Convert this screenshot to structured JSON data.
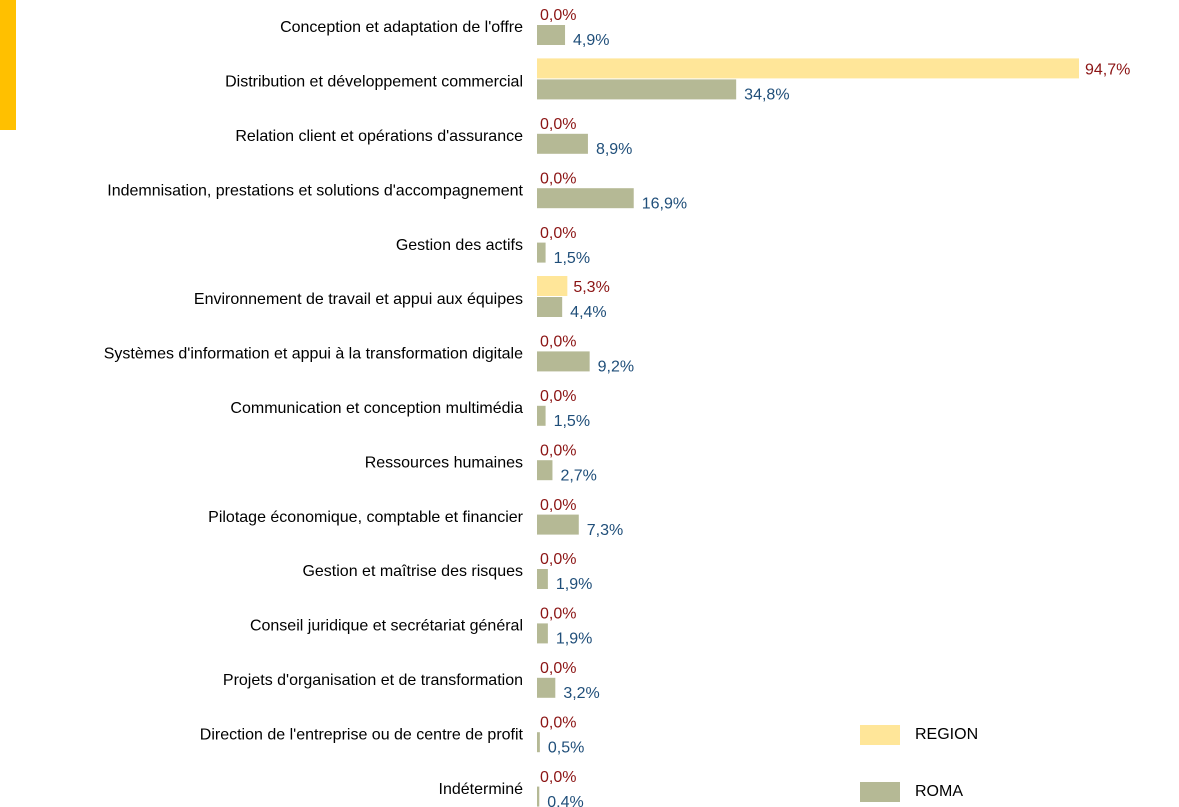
{
  "chart_data": {
    "type": "hbar",
    "categories": [
      "Conception et adaptation de l'offre",
      "Distribution et développement commercial",
      "Relation client et opérations d'assurance",
      "Indemnisation, prestations et solutions d'accompagnement",
      "Gestion des actifs",
      "Environnement de travail et appui aux équipes",
      "Systèmes d'information et appui à la transformation digitale",
      "Communication et conception multimédia",
      "Ressources humaines",
      "Pilotage économique, comptable et financier",
      "Gestion et maîtrise des risques",
      "Conseil juridique et secrétariat général",
      "Projets d'organisation et de transformation",
      "Direction de l'entreprise ou de centre de profit",
      "Indéterminé"
    ],
    "series": [
      {
        "name": "REGION",
        "color": "#ffe699",
        "label_color": "#8b1414",
        "values": [
          0,
          94.7,
          0,
          0,
          0,
          5.3,
          0,
          0,
          0,
          0,
          0,
          0,
          0,
          0,
          0
        ],
        "value_labels": [
          "0,0%",
          "94,7%",
          "0,0%",
          "0,0%",
          "0,0%",
          "5,3%",
          "0,0%",
          "0,0%",
          "0,0%",
          "0,0%",
          "0,0%",
          "0,0%",
          "0,0%",
          "0,0%",
          "0,0%"
        ]
      },
      {
        "name": "ROMA",
        "color": "#b5b995",
        "label_color": "#1f4e79",
        "values": [
          4.9,
          34.8,
          8.9,
          16.9,
          1.5,
          4.4,
          9.2,
          1.5,
          2.7,
          7.3,
          1.9,
          1.9,
          3.2,
          0.5,
          0.4
        ],
        "value_labels": [
          "4,9%",
          "34,8%",
          "8,9%",
          "16,9%",
          "1,5%",
          "4,4%",
          "9,2%",
          "1,5%",
          "2,7%",
          "7,3%",
          "1,9%",
          "1,9%",
          "3,2%",
          "0,5%",
          "0,4%"
        ]
      }
    ],
    "legend": "bottom-right"
  }
}
